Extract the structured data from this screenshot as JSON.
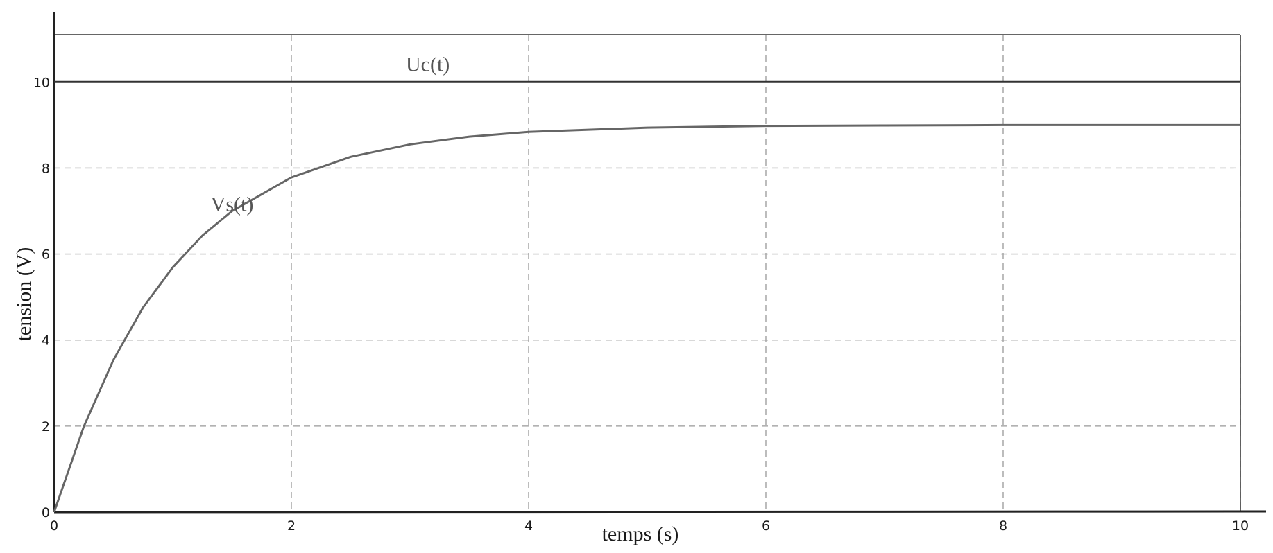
{
  "chart_data": {
    "type": "line",
    "title": "",
    "xlabel": "temps (s)",
    "ylabel": "tension (V)",
    "xlim": [
      0,
      10
    ],
    "ylim": [
      0,
      11.1
    ],
    "x_ticks": [
      0,
      2,
      4,
      6,
      8,
      10
    ],
    "x_tick_labels": [
      "0",
      "2",
      "4",
      "6",
      "8",
      "10"
    ],
    "y_ticks": [
      0,
      2,
      4,
      6,
      8,
      10
    ],
    "y_tick_labels": [
      "0",
      "2",
      "4",
      "6",
      "8",
      "10"
    ],
    "grid": true,
    "series": [
      {
        "name": "Uc(t)",
        "color": "#333333",
        "x": [
          0,
          1,
          2,
          3,
          4,
          5,
          6,
          7,
          8,
          9,
          10
        ],
        "y": [
          10,
          10,
          10,
          10,
          10,
          10,
          10,
          10,
          10,
          10,
          10
        ]
      },
      {
        "name": "Vs(t)",
        "color": "#666666",
        "x": [
          0,
          0.25,
          0.5,
          0.75,
          1,
          1.25,
          1.5,
          2,
          2.5,
          3,
          3.5,
          4,
          5,
          6,
          7,
          8,
          9,
          10
        ],
        "y": [
          0,
          1.99,
          3.54,
          4.76,
          5.69,
          6.43,
          7.0,
          7.78,
          8.26,
          8.55,
          8.73,
          8.84,
          8.94,
          8.98,
          8.99,
          9.0,
          9.0,
          9.0
        ]
      }
    ]
  }
}
